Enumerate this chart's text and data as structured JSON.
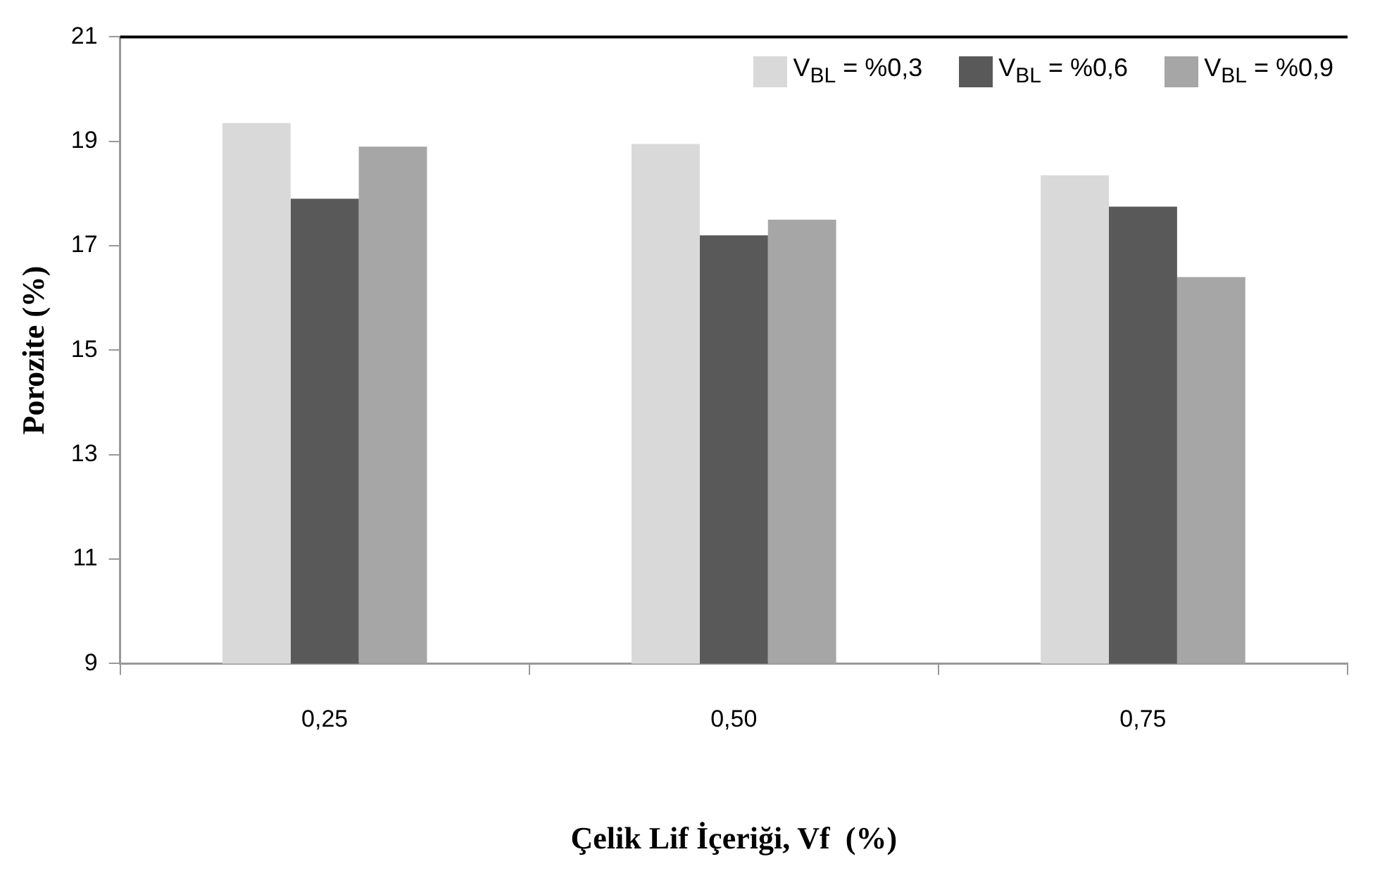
{
  "chart_data": {
    "type": "bar",
    "xlabel": "Çelik Lif İçeriği, Vf  (%)",
    "ylabel": "Porozite (%)",
    "categories": [
      "0,25",
      "0,50",
      "0,75"
    ],
    "series": [
      {
        "name": "V$_{BL}$ = %0,3",
        "color": "#d9d9d9",
        "values": [
          19.35,
          18.95,
          18.35
        ]
      },
      {
        "name": "V$_{BL}$ = %0,6",
        "color": "#595959",
        "values": [
          17.9,
          17.2,
          17.75
        ]
      },
      {
        "name": "V$_{BL}$ = %0,9",
        "color": "#a6a6a6",
        "values": [
          18.9,
          17.5,
          16.4
        ]
      }
    ],
    "ylim": [
      9,
      21
    ],
    "yticks": [
      9,
      11,
      13,
      15,
      17,
      19,
      21
    ],
    "grid": false,
    "legend": "top right"
  }
}
